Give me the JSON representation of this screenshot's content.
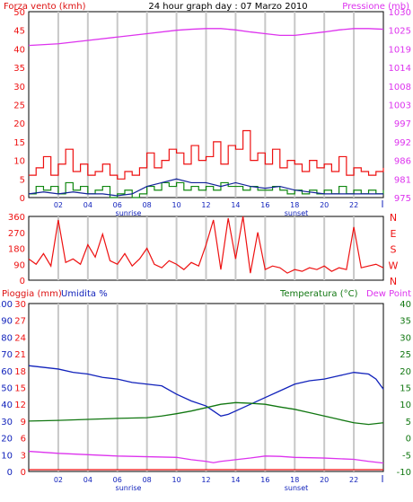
{
  "header": {
    "left_label": "Forza vento (kmh)",
    "center_title": "24 hour graph day : 07 Marzo 2010",
    "right_label": "Pressione (mb)"
  },
  "sun_labels": {
    "sunrise": "sunrise",
    "sunset": "sunset"
  },
  "bottom_header": {
    "rain_label": "Pioggia (mm)",
    "humidity_label": "Umidita %",
    "temp_label": "Temperatura (°C)",
    "dew_label": "Dew Point"
  },
  "x_ticks": [
    "02",
    "04",
    "06",
    "08",
    "10",
    "12",
    "14",
    "16",
    "18",
    "20",
    "22"
  ],
  "colors": {
    "wind": "#ee1111",
    "pressure": "#dd33ee",
    "gust": "#118811",
    "avg": "#112299",
    "direction": "#ee1111",
    "humidity": "#1122bb",
    "temperature": "#117711",
    "dewpoint": "#dd33ee",
    "rain": "#ee1111",
    "grid": "#c8c8c8"
  },
  "chart_data": [
    {
      "type": "line",
      "name": "wind-pressure",
      "x_range": [
        0,
        24
      ],
      "y_left": {
        "label": "Forza vento (kmh)",
        "ticks": [
          0,
          5,
          10,
          15,
          20,
          25,
          30,
          35,
          40,
          45,
          50
        ],
        "range": [
          0,
          50
        ]
      },
      "y_right": {
        "label": "Pressione (mb)",
        "ticks": [
          975,
          981,
          986,
          992,
          997,
          1003,
          1008,
          1014,
          1019,
          1025,
          1030
        ],
        "range": [
          975,
          1030
        ]
      },
      "series": [
        {
          "key": "pressure",
          "axis": "right",
          "x": [
            0,
            2,
            4,
            6,
            8,
            10,
            11,
            12,
            13,
            14,
            15,
            16,
            17,
            18,
            19,
            20,
            21,
            22,
            23,
            24
          ],
          "values": [
            1020,
            1020.5,
            1021.5,
            1022.5,
            1023.5,
            1024.5,
            1024.8,
            1025,
            1025,
            1024.6,
            1024,
            1023.5,
            1023,
            1023,
            1023.5,
            1024,
            1024.6,
            1025,
            1025,
            1024.8
          ]
        },
        {
          "key": "wind",
          "axis": "left",
          "step": true,
          "x": [
            0,
            0.5,
            1,
            1.5,
            2,
            2.5,
            3,
            3.5,
            4,
            4.5,
            5,
            5.5,
            6,
            6.5,
            7,
            7.5,
            8,
            8.5,
            9,
            9.5,
            10,
            10.5,
            11,
            11.5,
            12,
            12.5,
            13,
            13.5,
            14,
            14.5,
            15,
            15.5,
            16,
            16.5,
            17,
            17.5,
            18,
            18.5,
            19,
            19.5,
            20,
            20.5,
            21,
            21.5,
            22,
            22.5,
            23,
            23.5,
            24
          ],
          "values": [
            6,
            8,
            11,
            6,
            9,
            13,
            7,
            9,
            6,
            7,
            9,
            6,
            5,
            7,
            6,
            8,
            12,
            8,
            10,
            13,
            12,
            9,
            14,
            10,
            11,
            15,
            9,
            14,
            13,
            18,
            10,
            12,
            9,
            13,
            8,
            10,
            9,
            7,
            10,
            8,
            9,
            7,
            11,
            6,
            8,
            7,
            6,
            7,
            8
          ]
        },
        {
          "key": "gust",
          "axis": "left",
          "step": true,
          "x": [
            0,
            0.5,
            1,
            1.5,
            2,
            2.5,
            3,
            3.5,
            4,
            4.5,
            5,
            5.5,
            6,
            6.5,
            7,
            7.5,
            8,
            8.5,
            9,
            9.5,
            10,
            10.5,
            11,
            11.5,
            12,
            12.5,
            13,
            13.5,
            14,
            14.5,
            15,
            15.5,
            16,
            16.5,
            17,
            17.5,
            18,
            18.5,
            19,
            19.5,
            20,
            20.5,
            21,
            21.5,
            22,
            22.5,
            23,
            23.5,
            24
          ],
          "values": [
            1,
            3,
            2,
            3,
            1,
            4,
            2,
            3,
            1,
            2,
            3,
            0,
            1,
            2,
            0,
            1,
            3,
            2,
            4,
            3,
            4,
            2,
            3,
            2,
            3,
            2,
            4,
            3,
            3,
            2,
            3,
            2,
            2,
            3,
            2,
            1,
            2,
            1,
            2,
            1,
            2,
            1,
            3,
            1,
            2,
            1,
            2,
            1,
            2
          ]
        },
        {
          "key": "avg",
          "axis": "left",
          "x": [
            0,
            1,
            2,
            3,
            4,
            5,
            6,
            7,
            8,
            9,
            10,
            11,
            12,
            13,
            14,
            15,
            16,
            17,
            18,
            19,
            20,
            21,
            22,
            23,
            24
          ],
          "values": [
            1,
            1.5,
            1,
            1.5,
            1,
            1,
            0.5,
            1,
            3,
            4,
            5,
            4,
            4,
            3,
            4,
            3,
            2.5,
            3,
            2,
            1.5,
            1,
            1,
            1,
            1,
            1
          ]
        }
      ]
    },
    {
      "type": "line",
      "name": "wind-direction",
      "x_range": [
        0,
        24
      ],
      "y_left": {
        "ticks": [
          0,
          90,
          180,
          270,
          360
        ],
        "range": [
          0,
          360
        ]
      },
      "y_right": {
        "ticks": [
          "N",
          "W",
          "S",
          "E",
          "N"
        ]
      },
      "series": [
        {
          "key": "direction",
          "x": [
            0,
            0.5,
            1,
            1.5,
            2,
            2.5,
            3,
            3.5,
            4,
            4.5,
            5,
            5.5,
            6,
            6.5,
            7,
            7.5,
            8,
            8.5,
            9,
            9.5,
            10,
            10.5,
            11,
            11.5,
            12,
            12.5,
            13,
            13.5,
            14,
            14.5,
            15,
            15.5,
            16,
            16.5,
            17,
            17.5,
            18,
            18.5,
            19,
            19.5,
            20,
            20.5,
            21,
            21.5,
            22,
            22.5,
            23,
            23.5,
            24
          ],
          "values": [
            120,
            90,
            150,
            80,
            340,
            100,
            120,
            90,
            200,
            130,
            260,
            110,
            90,
            150,
            80,
            120,
            180,
            90,
            70,
            110,
            90,
            60,
            100,
            80,
            200,
            340,
            60,
            350,
            120,
            360,
            40,
            270,
            60,
            80,
            70,
            40,
            60,
            50,
            70,
            60,
            80,
            50,
            70,
            60,
            300,
            70,
            80,
            90,
            70
          ]
        }
      ]
    },
    {
      "type": "line",
      "name": "humidity-temperature",
      "x_range": [
        0,
        24
      ],
      "y_rain": {
        "label": "Pioggia (mm)",
        "ticks": [
          0,
          10,
          20,
          30,
          40,
          50,
          60,
          70,
          80,
          90,
          100
        ]
      },
      "y_humidity": {
        "label": "Umidita %",
        "ticks": [
          0,
          3,
          6,
          9,
          12,
          15,
          18,
          21,
          24,
          27,
          30
        ],
        "range": [
          0,
          30
        ]
      },
      "y_right": {
        "label": "Temperatura (°C)",
        "ticks": [
          -10,
          -5,
          0,
          5,
          10,
          15,
          20,
          25,
          30,
          35,
          40
        ],
        "range": [
          -10,
          40
        ]
      },
      "series": [
        {
          "key": "humidity",
          "axis": "left",
          "x": [
            0,
            1,
            2,
            3,
            4,
            5,
            6,
            7,
            8,
            9,
            10,
            11,
            12,
            12.5,
            13,
            13.5,
            14,
            15,
            16,
            17,
            18,
            19,
            20,
            21,
            22,
            23,
            23.5,
            24
          ],
          "values": [
            63,
            62,
            61,
            59,
            58,
            56,
            55,
            53,
            52,
            51,
            46,
            42,
            39,
            36,
            33,
            34,
            36,
            40,
            44,
            48,
            52,
            54,
            55,
            57,
            59,
            58,
            55,
            49
          ]
        },
        {
          "key": "temperature",
          "axis": "right",
          "x": [
            0,
            2,
            4,
            6,
            8,
            9,
            10,
            11,
            12,
            13,
            14,
            15,
            16,
            17,
            18,
            19,
            20,
            21,
            22,
            23,
            24
          ],
          "values": [
            5,
            5.2,
            5.5,
            5.8,
            6,
            6.5,
            7.2,
            8,
            9,
            10,
            10.5,
            10.3,
            10,
            9.2,
            8.5,
            7.5,
            6.5,
            5.5,
            4.5,
            4,
            4.5
          ]
        },
        {
          "key": "dewpoint",
          "axis": "right",
          "x": [
            0,
            1,
            2,
            4,
            6,
            8,
            10,
            11,
            12,
            12.5,
            13,
            14,
            15,
            16,
            17,
            18,
            20,
            22,
            23,
            24
          ],
          "values": [
            -4,
            -4.3,
            -4.6,
            -5,
            -5.4,
            -5.6,
            -5.8,
            -6.5,
            -7,
            -7.4,
            -7,
            -6.5,
            -6,
            -5.4,
            -5.5,
            -5.8,
            -6,
            -6.4,
            -7,
            -7.5
          ]
        },
        {
          "key": "rain",
          "axis": "left",
          "x": [
            0,
            24
          ],
          "values": [
            0,
            0
          ]
        }
      ]
    }
  ]
}
